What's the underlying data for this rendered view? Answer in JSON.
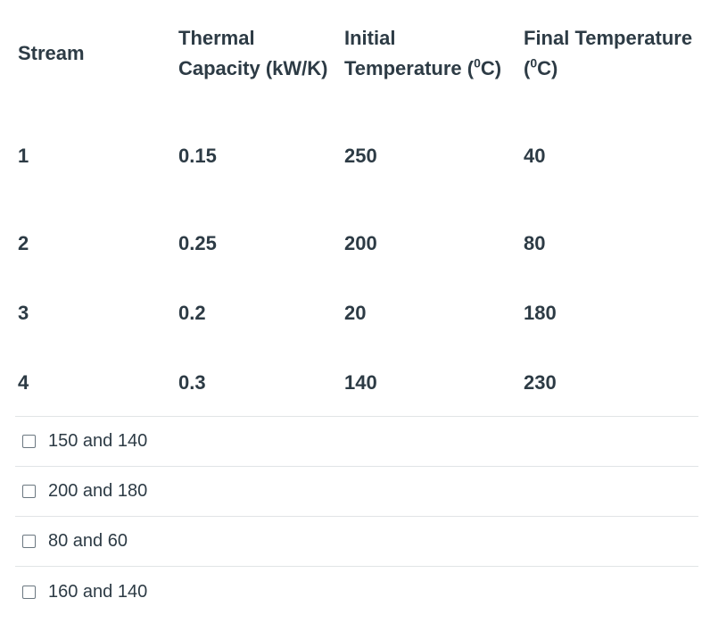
{
  "table": {
    "headers": {
      "stream": "Stream",
      "capacity_line1": "Thermal",
      "capacity_line2": "Capacity (kW/K)",
      "initial_line1": "Initial",
      "initial_line2_prefix": "Temperature (",
      "initial_sup": "0",
      "initial_line2_suffix": "C)",
      "final_line1": "Final Temperature",
      "final_line2_prefix": "(",
      "final_sup": "0",
      "final_line2_suffix": "C)"
    },
    "rows": [
      {
        "stream": "1",
        "capacity": "0.15",
        "initial": "250",
        "final": "40"
      },
      {
        "stream": "2",
        "capacity": "0.25",
        "initial": "200",
        "final": "80"
      },
      {
        "stream": "3",
        "capacity": "0.2",
        "initial": "20",
        "final": "180"
      },
      {
        "stream": "4",
        "capacity": "0.3",
        "initial": "140",
        "final": "230"
      }
    ]
  },
  "answers": [
    {
      "label": "150 and 140",
      "checked": false
    },
    {
      "label": "200 and 180",
      "checked": false
    },
    {
      "label": "80 and 60",
      "checked": false
    },
    {
      "label": "160 and 140",
      "checked": false
    }
  ]
}
